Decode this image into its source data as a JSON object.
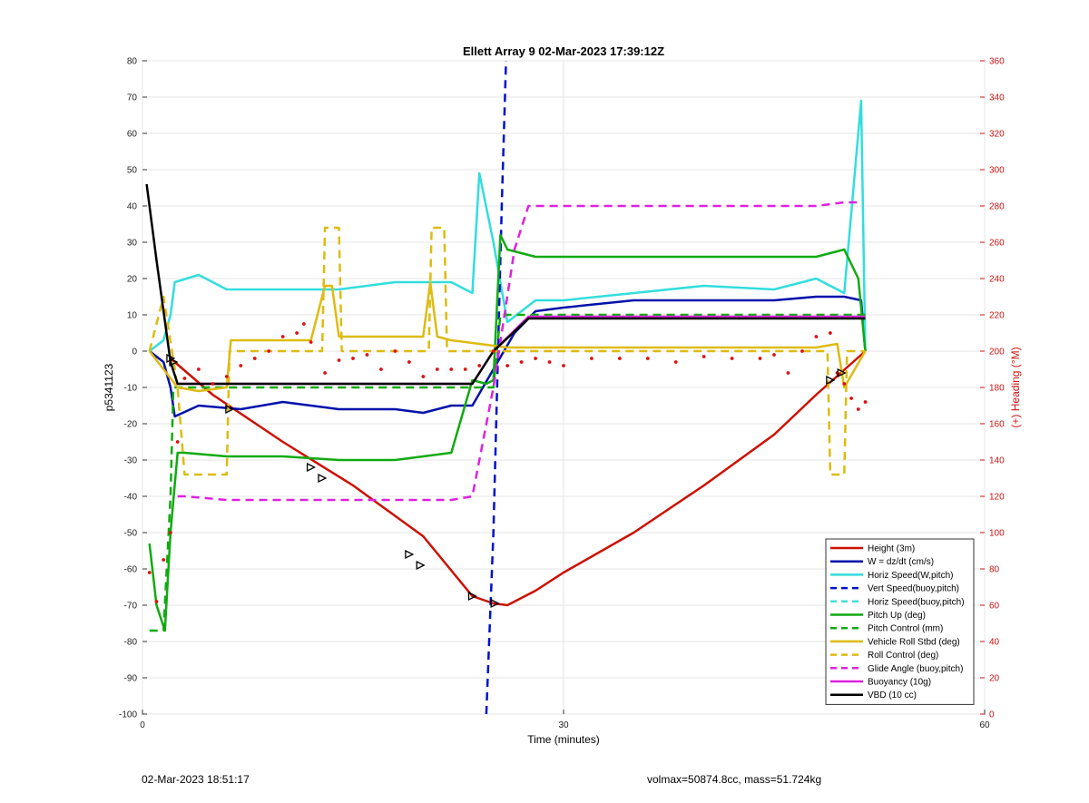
{
  "chart_data": {
    "type": "line",
    "title": "Ellett Array 9 02-Mar-2023 17:39:12Z",
    "xlabel": "Time (minutes)",
    "ylabel_left": "p5341123",
    "ylabel_right": "(+) Heading (°M)",
    "xlim": [
      0,
      60
    ],
    "ylim_left": [
      -100,
      80
    ],
    "ylim_right": [
      0,
      360
    ],
    "x_ticks": [
      0,
      30,
      60
    ],
    "y_ticks_left": [
      80,
      70,
      60,
      50,
      40,
      30,
      20,
      10,
      0,
      -10,
      -20,
      -30,
      -40,
      -50,
      -60,
      -70,
      -80,
      -90,
      -100
    ],
    "y_ticks_right": [
      360,
      340,
      320,
      300,
      280,
      260,
      240,
      220,
      200,
      180,
      160,
      140,
      120,
      100,
      80,
      60,
      40,
      20,
      0
    ],
    "grid": true,
    "legend_position": "bottom-right",
    "series": [
      {
        "name": "Height (3m)",
        "color": "#cc1100",
        "dash": "solid",
        "x": [
          2.0,
          5,
          10,
          15,
          20,
          23.5,
          25,
          26,
          28,
          30,
          35,
          40,
          45,
          48,
          51.5
        ],
        "y": [
          -2,
          -12,
          -25,
          -37,
          -51,
          -67.5,
          -69.5,
          -70,
          -66,
          -61,
          -50,
          -37,
          -23,
          -12,
          0
        ]
      },
      {
        "name": "W = dz/dt (cm/s)",
        "color": "#0011aa",
        "dash": "solid",
        "x": [
          0.5,
          1.5,
          2.0,
          2.3,
          4,
          7,
          10,
          14,
          18,
          20,
          22,
          23.5,
          25,
          26.5,
          28,
          30,
          35,
          40,
          45,
          48,
          50,
          51.2,
          51.5
        ],
        "y": [
          0,
          -3,
          -10,
          -18,
          -15,
          -16,
          -14,
          -16,
          -16,
          -17,
          -15,
          -15,
          -5,
          5,
          11,
          12,
          14,
          14,
          14,
          15,
          15,
          14,
          0
        ]
      },
      {
        "name": "Horiz Speed(W,pitch)",
        "color": "#33dddd",
        "dash": "solid",
        "x": [
          0.5,
          1.5,
          2.0,
          2.3,
          4,
          6,
          10,
          14,
          18,
          20,
          22,
          23.5,
          24,
          25,
          26,
          28,
          30,
          35,
          40,
          45,
          48,
          50,
          51.2,
          51.5
        ],
        "y": [
          0,
          3,
          10,
          19,
          21,
          17,
          17,
          17,
          19,
          19,
          19,
          16,
          49,
          30,
          8,
          14,
          14,
          16,
          18,
          17,
          20,
          16,
          69,
          0
        ]
      },
      {
        "name": "Vert Speed(buoy,pitch)",
        "color": "#0011cc",
        "dash": "dashed",
        "x": [
          24.5,
          25.0,
          25.6,
          25.9
        ],
        "y": [
          -100,
          -50,
          40,
          80
        ]
      },
      {
        "name": "Horiz Speed(buoy,pitch)",
        "color": "#44dddd",
        "dash": "dashed",
        "x": [],
        "y": []
      },
      {
        "name": "Pitch Up (deg)",
        "color": "#11aa11",
        "dash": "solid",
        "x": [
          0.5,
          1.0,
          1.6,
          2.0,
          2.5,
          3,
          6,
          10,
          14,
          18,
          22,
          23.5,
          24.5,
          25.0,
          25.5,
          26,
          28,
          30,
          35,
          40,
          45,
          48,
          50,
          51.0,
          51.5
        ],
        "y": [
          -53,
          -70,
          -77,
          -50,
          -28,
          -28,
          -29,
          -29,
          -30,
          -30,
          -28,
          -8,
          -9,
          -8,
          32,
          28,
          26,
          26,
          26,
          26,
          26,
          26,
          28,
          20,
          0
        ]
      },
      {
        "name": "Pitch Control (mm)",
        "color": "#11aa11",
        "dash": "dashed",
        "x": [
          0.5,
          1.5,
          2.0,
          2.2,
          10,
          20,
          23.5,
          25.0,
          25.5,
          30,
          40,
          50,
          51.5
        ],
        "y": [
          -77,
          -77,
          -40,
          -10,
          -10,
          -10,
          -10,
          -10,
          10,
          10,
          10,
          10,
          10
        ]
      },
      {
        "name": "Vehicle Roll Stbd (deg)",
        "color": "#ddbb11",
        "dash": "solid",
        "x": [
          0.5,
          1.5,
          2.5,
          4,
          6,
          6.3,
          8,
          12,
          13,
          13.5,
          14,
          17,
          20,
          20.5,
          21,
          22,
          24,
          26,
          30,
          35,
          40,
          45,
          48,
          49.5,
          50,
          51.5
        ],
        "y": [
          0,
          -5,
          -10,
          -11,
          -10,
          3,
          3,
          3,
          18,
          18,
          4,
          4,
          4,
          19,
          4,
          3,
          2,
          1,
          1,
          1,
          1,
          1,
          1,
          2,
          -10,
          0
        ]
      },
      {
        "name": "Roll Control (deg)",
        "color": "#ddbb11",
        "dash": "dashed",
        "x": [
          0.5,
          1.5,
          2.5,
          3,
          6,
          6.2,
          12.8,
          13.0,
          14,
          14.2,
          20.4,
          20.6,
          21.5,
          21.7,
          30,
          40,
          48.8,
          49.0,
          50,
          50.2,
          51.5
        ],
        "y": [
          0,
          15,
          -10,
          -34,
          -34,
          0,
          0,
          34,
          34,
          0,
          0,
          34,
          34,
          0,
          0,
          0,
          0,
          -34,
          -34,
          0,
          0
        ]
      },
      {
        "name": "Glide Angle (buoy,pitch)",
        "color": "#dd22dd",
        "dash": "dashed",
        "x": [
          2.5,
          3,
          6,
          10,
          15,
          20,
          22,
          23.5,
          25,
          26.5,
          27.5,
          30,
          35,
          40,
          45,
          48,
          50,
          51.0
        ],
        "y": [
          -40,
          -40,
          -41,
          -41,
          -41,
          -41,
          -41,
          -40,
          -10,
          28,
          40,
          40,
          40,
          40,
          40,
          40,
          41,
          41
        ]
      },
      {
        "name": "Buoyancy (10g)",
        "color": "#dd22dd",
        "dash": "solid",
        "x": [
          2.5,
          10,
          20,
          23.5,
          25.0,
          27.5,
          30,
          40,
          51.5
        ],
        "y": [
          -9,
          -9,
          -9,
          -9,
          0,
          9.5,
          9.5,
          9.5,
          9.5
        ]
      },
      {
        "name": "VBD (10 cc)",
        "color": "#000000",
        "dash": "solid",
        "x": [
          0.3,
          1.0,
          2.0,
          2.5,
          10,
          20,
          23.5,
          25.0,
          27.5,
          30,
          40,
          51.5
        ],
        "y": [
          46,
          25,
          -3,
          -9,
          -9,
          -9,
          -9,
          0,
          9,
          9,
          9,
          9
        ]
      }
    ],
    "heading": {
      "name": "Heading (°M)",
      "color": "#dd1111",
      "axis": "right",
      "x": [
        0.5,
        1.0,
        1.5,
        2.0,
        2.5,
        3,
        4,
        5,
        6,
        7,
        8,
        9,
        10,
        11,
        11.5,
        12,
        13,
        14,
        15,
        16,
        17,
        18,
        19,
        20,
        21,
        22,
        23,
        24,
        25,
        26,
        27,
        28,
        29,
        30,
        32,
        34,
        36,
        38,
        40,
        42,
        44,
        45,
        46,
        47,
        48,
        49,
        49.5,
        50,
        50.5,
        51,
        51.5
      ],
      "y": [
        78,
        62,
        85,
        100,
        150,
        185,
        190,
        182,
        186,
        192,
        196,
        200,
        208,
        210,
        215,
        205,
        188,
        195,
        196,
        198,
        190,
        200,
        194,
        186,
        190,
        190,
        190,
        192,
        200,
        192,
        194,
        196,
        194,
        192,
        196,
        196,
        196,
        194,
        197,
        196,
        196,
        198,
        188,
        200,
        208,
        210,
        188,
        182,
        174,
        168,
        172
      ]
    },
    "markers": {
      "shape": "triangle",
      "x": [
        2.0,
        2.2,
        6.2,
        12.0,
        12.8,
        19.0,
        19.8,
        23.5,
        25.1,
        49.0,
        49.8
      ],
      "y": [
        -2,
        -3,
        -16,
        -32,
        -35,
        -56,
        -59,
        -67.5,
        -69.5,
        -8,
        -6
      ]
    }
  },
  "footer": {
    "left": "02-Mar-2023 18:51:17",
    "right": "volmax=50874.8cc, mass=51.724kg"
  }
}
